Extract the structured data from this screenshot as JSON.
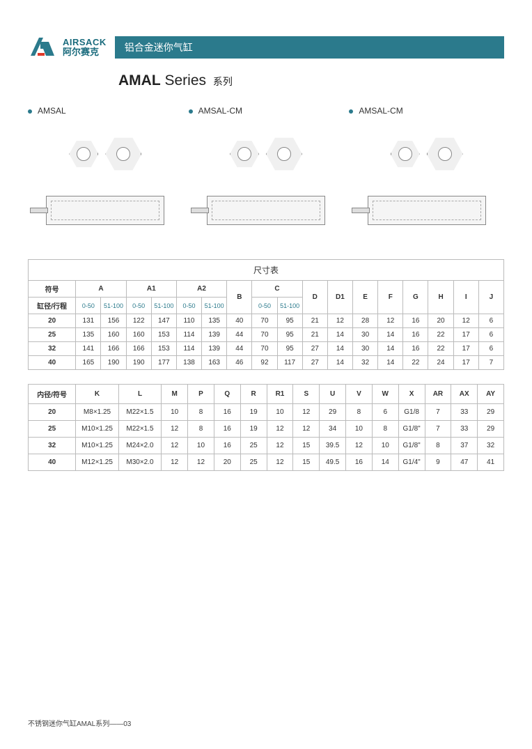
{
  "brand": {
    "en": "AIRSACK",
    "cn": "阿尔赛克"
  },
  "header_title": "铝合金迷你气缸",
  "series": {
    "name": "AMAL",
    "word": "Series",
    "cn": "系列"
  },
  "diagrams": [
    {
      "label": "AMSAL"
    },
    {
      "label": "AMSAL-CM"
    },
    {
      "label": "AMSAL-CM"
    }
  ],
  "table1": {
    "title": "尺寸表",
    "symbol_label": "符号",
    "bore_label": "缸径/行程",
    "top_cols": [
      "A",
      "A1",
      "A2",
      "B",
      "C",
      "D",
      "D1",
      "E",
      "F",
      "G",
      "H",
      "I",
      "J"
    ],
    "sub_ranges": [
      "0-50",
      "51-100",
      "0-50",
      "51-100",
      "0-50",
      "51-100",
      "",
      "0-50",
      "51-100"
    ],
    "rows": [
      {
        "bore": "20",
        "vals": [
          "131",
          "156",
          "122",
          "147",
          "110",
          "135",
          "40",
          "70",
          "95",
          "21",
          "12",
          "28",
          "12",
          "16",
          "20",
          "12",
          "6"
        ]
      },
      {
        "bore": "25",
        "vals": [
          "135",
          "160",
          "160",
          "153",
          "114",
          "139",
          "44",
          "70",
          "95",
          "21",
          "14",
          "30",
          "14",
          "16",
          "22",
          "17",
          "6"
        ]
      },
      {
        "bore": "32",
        "vals": [
          "141",
          "166",
          "166",
          "153",
          "114",
          "139",
          "44",
          "70",
          "95",
          "27",
          "14",
          "30",
          "14",
          "16",
          "22",
          "17",
          "6"
        ]
      },
      {
        "bore": "40",
        "vals": [
          "165",
          "190",
          "190",
          "177",
          "138",
          "163",
          "46",
          "92",
          "117",
          "27",
          "14",
          "32",
          "14",
          "22",
          "24",
          "17",
          "7"
        ]
      }
    ]
  },
  "table2": {
    "bore_label": "内径/符号",
    "cols": [
      "K",
      "L",
      "M",
      "P",
      "Q",
      "R",
      "R1",
      "S",
      "U",
      "V",
      "W",
      "X",
      "AR",
      "AX",
      "AY"
    ],
    "rows": [
      {
        "bore": "20",
        "vals": [
          "M8×1.25",
          "M22×1.5",
          "10",
          "8",
          "16",
          "19",
          "10",
          "12",
          "29",
          "8",
          "6",
          "G1/8",
          "7",
          "33",
          "29"
        ]
      },
      {
        "bore": "25",
        "vals": [
          "M10×1.25",
          "M22×1.5",
          "12",
          "8",
          "16",
          "19",
          "12",
          "12",
          "34",
          "10",
          "8",
          "G1/8\"",
          "7",
          "33",
          "29"
        ]
      },
      {
        "bore": "32",
        "vals": [
          "M10×1.25",
          "M24×2.0",
          "12",
          "10",
          "16",
          "25",
          "12",
          "15",
          "39.5",
          "12",
          "10",
          "G1/8\"",
          "8",
          "37",
          "32"
        ]
      },
      {
        "bore": "40",
        "vals": [
          "M12×1.25",
          "M30×2.0",
          "12",
          "12",
          "20",
          "25",
          "12",
          "15",
          "49.5",
          "16",
          "14",
          "G1/4\"",
          "9",
          "47",
          "41"
        ]
      }
    ]
  },
  "footer": "不锈钢迷你气缸AMAL系列——03",
  "colors": {
    "accent": "#2b7a8c",
    "border": "#bbbbbb",
    "text": "#333333"
  }
}
